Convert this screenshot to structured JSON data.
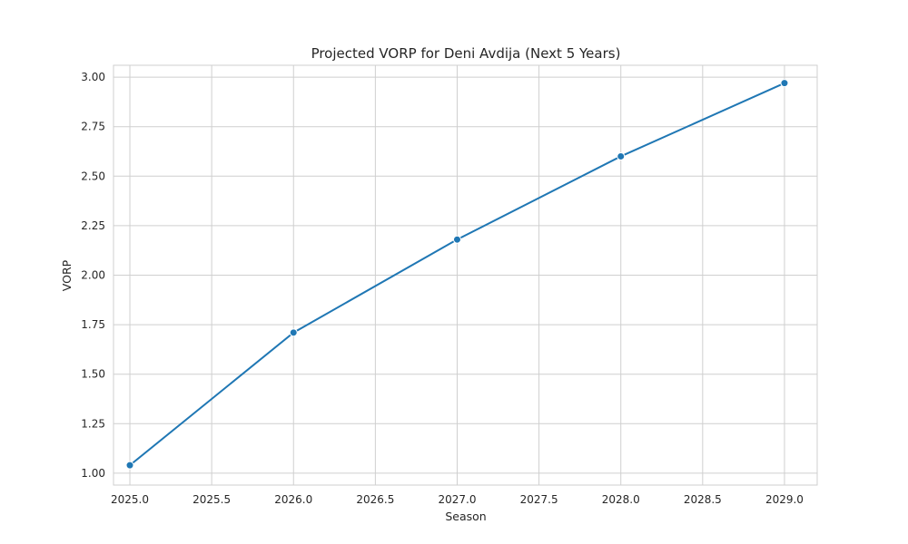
{
  "chart_data": {
    "type": "line",
    "title": "Projected VORP for Deni Avdija (Next 5 Years)",
    "xlabel": "Season",
    "ylabel": "VORP",
    "xlim": [
      2024.9,
      2029.2
    ],
    "ylim": [
      0.94,
      3.06
    ],
    "x_ticks": [
      2025.0,
      2025.5,
      2026.0,
      2026.5,
      2027.0,
      2027.5,
      2028.0,
      2028.5,
      2029.0
    ],
    "x_tick_labels": [
      "2025.0",
      "2025.5",
      "2026.0",
      "2026.5",
      "2027.0",
      "2027.5",
      "2028.0",
      "2028.5",
      "2029.0"
    ],
    "y_ticks": [
      1.0,
      1.25,
      1.5,
      1.75,
      2.0,
      2.25,
      2.5,
      2.75,
      3.0
    ],
    "y_tick_labels": [
      "1.00",
      "1.25",
      "1.50",
      "1.75",
      "2.00",
      "2.25",
      "2.50",
      "2.75",
      "3.00"
    ],
    "grid": true,
    "series": [
      {
        "x": [
          2025,
          2026,
          2027,
          2028,
          2029
        ],
        "values": [
          1.04,
          1.71,
          2.18,
          2.6,
          2.97
        ],
        "color": "#1f77b4",
        "marker": "circle"
      }
    ]
  }
}
